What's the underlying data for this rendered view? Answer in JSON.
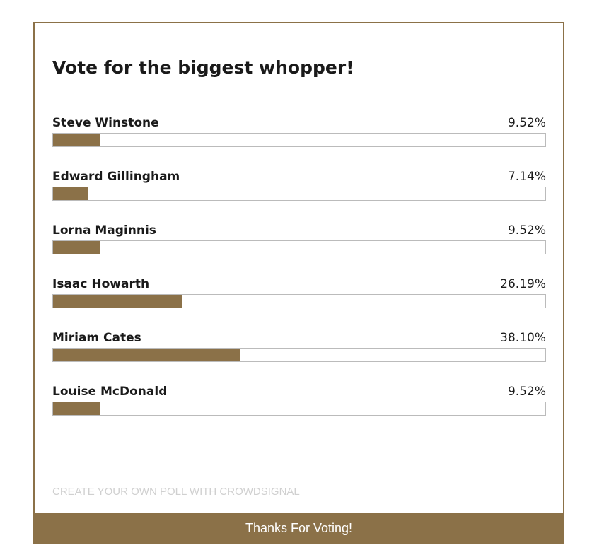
{
  "poll": {
    "title": "Vote for the biggest whopper!",
    "options": [
      {
        "name": "Steve Winstone",
        "value": 9.52,
        "label": "9.52%"
      },
      {
        "name": "Edward Gillingham",
        "value": 7.14,
        "label": "7.14%"
      },
      {
        "name": "Lorna Maginnis",
        "value": 9.52,
        "label": "9.52%"
      },
      {
        "name": "Isaac Howarth",
        "value": 26.19,
        "label": "26.19%"
      },
      {
        "name": "Miriam Cates",
        "value": 38.1,
        "label": "38.10%"
      },
      {
        "name": "Louise McDonald",
        "value": 9.52,
        "label": "9.52%"
      }
    ],
    "link": "CREATE YOUR OWN POLL WITH CROWDSIGNAL",
    "footer": "Thanks For Voting!"
  }
}
